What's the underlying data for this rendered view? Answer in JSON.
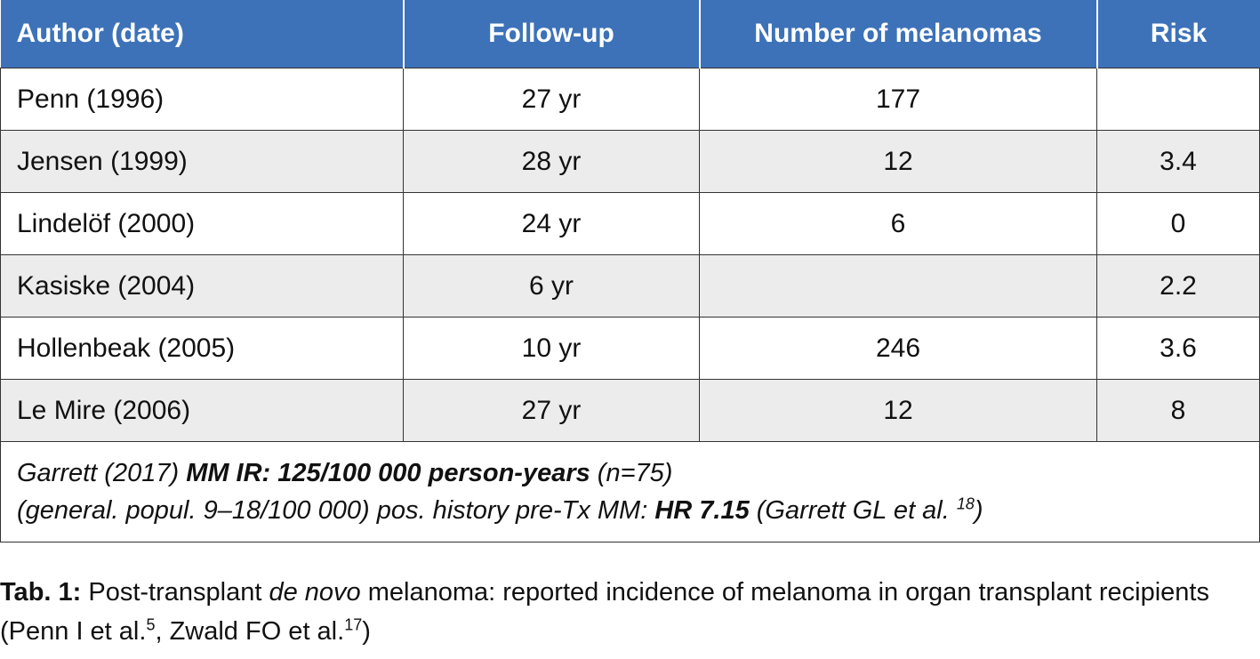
{
  "table": {
    "headers": [
      "Author (date)",
      "Follow-up",
      "Number of melanomas",
      "Risk"
    ],
    "rows": [
      [
        "Penn (1996)",
        "27 yr",
        "177",
        ""
      ],
      [
        "Jensen (1999)",
        "28 yr",
        "12",
        "3.4"
      ],
      [
        "Lindelöf (2000)",
        "24 yr",
        "6",
        "0"
      ],
      [
        "Kasiske (2004)",
        "6 yr",
        "",
        "2.2"
      ],
      [
        "Hollenbeak (2005)",
        "10 yr",
        "246",
        "3.6"
      ],
      [
        "Le Mire (2006)",
        "27 yr",
        "12",
        "8"
      ]
    ],
    "note": {
      "line1_prefix": "Garrett (2017) ",
      "line1_bold": "MM IR: 125/100 000 person-years",
      "line1_suffix": " (n=75)",
      "line2_prefix": "(general. popul. 9–18/100 000) pos. history pre-Tx MM: ",
      "line2_bold": "HR 7.15",
      "line2_suffix": " (Garrett GL et al. ",
      "line2_sup": "18",
      "line2_close": ")"
    }
  },
  "caption": {
    "label": "Tab. 1:",
    "text1": " Post-transplant ",
    "italic": "de novo",
    "text2": " melanoma: reported incidence of melanoma in organ transplant recipients (Penn I et al.",
    "sup1": "5",
    "text3": ", Zwald FO et al.",
    "sup2": "17",
    "text4": ")"
  },
  "colors": {
    "header_bg": "#3d72b8",
    "alt_row_bg": "#ececec",
    "border": "#333333"
  }
}
